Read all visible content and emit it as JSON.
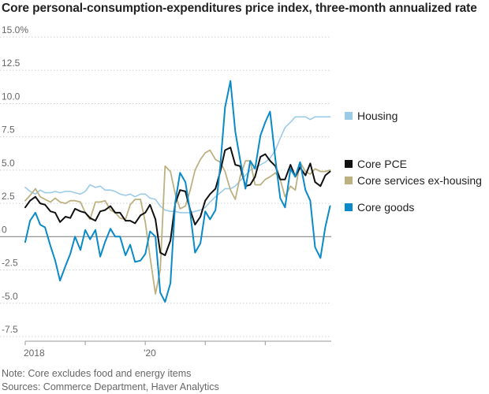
{
  "chart_data": {
    "type": "line",
    "title": "Core personal-consumption-expenditures price index, three-month annualized rate",
    "y_ticks": [
      "15.0%",
      "12.5",
      "10.0",
      "7.5",
      "5.0",
      "2.5",
      "0",
      "-2.5",
      "-5.0",
      "-7.5"
    ],
    "y_tick_values": [
      15,
      12.5,
      10,
      7.5,
      5,
      2.5,
      0,
      -2.5,
      -5,
      -7.5
    ],
    "ylim": [
      -7.5,
      15
    ],
    "x_ticks": [
      "2018",
      "'20"
    ],
    "x_tick_positions": [
      2018.0,
      2020.0
    ],
    "x_minor_ticks": [
      2019.0,
      2021.0,
      2022.0
    ],
    "xlim": [
      2018.0,
      2023.1
    ],
    "grid": true,
    "legend_position": "right",
    "series": [
      {
        "name": "Housing",
        "color": "#9ccbe8",
        "width": 1.6,
        "x": [
          2018.0,
          2018.08,
          2018.17,
          2018.25,
          2018.33,
          2018.42,
          2018.5,
          2018.58,
          2018.67,
          2018.75,
          2018.83,
          2018.92,
          2019.0,
          2019.08,
          2019.17,
          2019.25,
          2019.33,
          2019.42,
          2019.5,
          2019.58,
          2019.67,
          2019.75,
          2019.83,
          2019.92,
          2020.0,
          2020.08,
          2020.17,
          2020.25,
          2020.33,
          2020.42,
          2020.5,
          2020.58,
          2020.67,
          2020.75,
          2020.83,
          2020.92,
          2021.0,
          2021.08,
          2021.17,
          2021.25,
          2021.33,
          2021.42,
          2021.5,
          2021.58,
          2021.67,
          2021.75,
          2021.83,
          2021.92,
          2022.0,
          2022.08,
          2022.17,
          2022.25,
          2022.33,
          2022.42,
          2022.5,
          2022.58,
          2022.67,
          2022.75,
          2022.83,
          2022.92,
          2023.0,
          2023.08
        ],
        "values": [
          3.7,
          3.4,
          3.2,
          3.5,
          3.3,
          3.3,
          3.4,
          3.3,
          3.4,
          3.4,
          3.3,
          3.2,
          3.4,
          3.9,
          3.7,
          3.8,
          3.5,
          3.5,
          3.4,
          3.2,
          3.1,
          3.2,
          3.0,
          3.2,
          3.2,
          2.9,
          2.8,
          2.3,
          2.0,
          1.9,
          1.9,
          1.8,
          1.8,
          1.8,
          1.9,
          2.0,
          2.2,
          2.6,
          3.0,
          3.3,
          3.6,
          3.6,
          3.8,
          4.2,
          4.6,
          5.0,
          5.2,
          5.4,
          5.6,
          5.9,
          6.5,
          7.4,
          8.2,
          8.6,
          9.0,
          9.0,
          9.0,
          8.8,
          9.0,
          9.0,
          9.0,
          9.0
        ]
      },
      {
        "name": "Core services ex-housing",
        "color": "#bdb181",
        "width": 1.8,
        "x": [
          2018.0,
          2018.08,
          2018.17,
          2018.25,
          2018.33,
          2018.42,
          2018.5,
          2018.58,
          2018.67,
          2018.75,
          2018.83,
          2018.92,
          2019.0,
          2019.08,
          2019.17,
          2019.25,
          2019.33,
          2019.42,
          2019.5,
          2019.58,
          2019.67,
          2019.75,
          2019.83,
          2019.92,
          2020.0,
          2020.08,
          2020.17,
          2020.25,
          2020.33,
          2020.42,
          2020.5,
          2020.58,
          2020.67,
          2020.75,
          2020.83,
          2020.92,
          2021.0,
          2021.08,
          2021.17,
          2021.25,
          2021.33,
          2021.42,
          2021.5,
          2021.58,
          2021.67,
          2021.75,
          2021.83,
          2021.92,
          2022.0,
          2022.08,
          2022.17,
          2022.25,
          2022.33,
          2022.42,
          2022.5,
          2022.58,
          2022.67,
          2022.75,
          2022.83,
          2022.92,
          2023.0,
          2023.08
        ],
        "values": [
          2.7,
          3.1,
          3.6,
          3.0,
          2.8,
          2.6,
          2.9,
          2.6,
          2.5,
          2.7,
          2.7,
          2.6,
          1.8,
          1.3,
          2.6,
          2.6,
          2.7,
          2.0,
          1.8,
          1.4,
          1.3,
          2.4,
          2.8,
          2.8,
          1.1,
          -1.5,
          -4.3,
          -2.5,
          5.3,
          4.9,
          3.2,
          2.1,
          2.3,
          3.5,
          5.0,
          5.8,
          6.3,
          6.5,
          5.8,
          5.6,
          4.9,
          3.5,
          2.8,
          4.5,
          5.7,
          5.7,
          3.9,
          3.9,
          4.3,
          4.5,
          4.8,
          4.3,
          3.0,
          3.8,
          3.5,
          5.6,
          4.9,
          4.7,
          5.1,
          4.9,
          4.9,
          5.0
        ]
      },
      {
        "name": "Core PCE",
        "color": "#111111",
        "width": 2.0,
        "x": [
          2018.0,
          2018.08,
          2018.17,
          2018.25,
          2018.33,
          2018.42,
          2018.5,
          2018.58,
          2018.67,
          2018.75,
          2018.83,
          2018.92,
          2019.0,
          2019.08,
          2019.17,
          2019.25,
          2019.33,
          2019.42,
          2019.5,
          2019.58,
          2019.67,
          2019.75,
          2019.83,
          2019.92,
          2020.0,
          2020.08,
          2020.17,
          2020.25,
          2020.33,
          2020.42,
          2020.5,
          2020.58,
          2020.67,
          2020.75,
          2020.83,
          2020.92,
          2021.0,
          2021.08,
          2021.17,
          2021.25,
          2021.33,
          2021.42,
          2021.5,
          2021.58,
          2021.67,
          2021.75,
          2021.83,
          2021.92,
          2022.0,
          2022.08,
          2022.17,
          2022.25,
          2022.33,
          2022.42,
          2022.5,
          2022.58,
          2022.67,
          2022.75,
          2022.83,
          2022.92,
          2023.0,
          2023.08
        ],
        "values": [
          2.2,
          2.7,
          3.0,
          2.5,
          2.4,
          1.9,
          1.8,
          1.1,
          1.5,
          1.4,
          2.1,
          1.9,
          1.8,
          1.4,
          1.2,
          1.9,
          2.0,
          2.3,
          1.8,
          1.8,
          1.2,
          1.2,
          1.0,
          1.6,
          1.8,
          2.4,
          1.3,
          -1.2,
          -1.4,
          -0.3,
          2.5,
          3.5,
          3.4,
          2.0,
          0.9,
          1.5,
          2.7,
          3.2,
          3.6,
          4.9,
          6.5,
          6.7,
          5.4,
          5.3,
          3.8,
          3.9,
          4.5,
          6.0,
          6.2,
          5.7,
          5.3,
          4.3,
          4.3,
          5.4,
          4.5,
          5.2,
          4.6,
          5.5,
          4.1,
          3.8,
          4.6,
          4.9
        ]
      },
      {
        "name": "Core goods",
        "color": "#0b8ac9",
        "width": 2.0,
        "x": [
          2018.0,
          2018.08,
          2018.17,
          2018.25,
          2018.33,
          2018.42,
          2018.5,
          2018.58,
          2018.67,
          2018.75,
          2018.83,
          2018.92,
          2019.0,
          2019.08,
          2019.17,
          2019.25,
          2019.33,
          2019.42,
          2019.5,
          2019.58,
          2019.67,
          2019.75,
          2019.83,
          2019.92,
          2020.0,
          2020.08,
          2020.17,
          2020.25,
          2020.33,
          2020.42,
          2020.5,
          2020.58,
          2020.67,
          2020.75,
          2020.83,
          2020.92,
          2021.0,
          2021.08,
          2021.17,
          2021.25,
          2021.33,
          2021.42,
          2021.5,
          2021.58,
          2021.67,
          2021.75,
          2021.83,
          2021.92,
          2022.0,
          2022.08,
          2022.17,
          2022.25,
          2022.33,
          2022.42,
          2022.5,
          2022.58,
          2022.67,
          2022.75,
          2022.83,
          2022.92,
          2023.0,
          2023.08
        ],
        "values": [
          -0.4,
          1.2,
          1.8,
          0.9,
          0.7,
          -0.7,
          -1.8,
          -3.3,
          -2.2,
          -1.3,
          0.0,
          -1.0,
          0.5,
          -0.2,
          0.5,
          -1.5,
          -0.4,
          0.6,
          0.0,
          0.0,
          -1.4,
          -0.6,
          -1.9,
          -1.8,
          -1.3,
          0.4,
          0.0,
          -4.2,
          -4.9,
          -3.5,
          2.6,
          4.8,
          4.1,
          1.8,
          -1.2,
          -0.5,
          1.9,
          1.3,
          2.0,
          5.3,
          9.7,
          11.7,
          7.9,
          5.8,
          3.6,
          5.7,
          5.1,
          7.6,
          8.6,
          9.4,
          5.8,
          2.9,
          2.2,
          5.1,
          4.5,
          5.6,
          3.5,
          2.7,
          -0.8,
          -1.6,
          0.7,
          2.3
        ]
      }
    ]
  },
  "legend": [
    {
      "label": "Housing",
      "color": "#9ccbe8"
    },
    {
      "label": "Core PCE",
      "color": "#111111"
    },
    {
      "label": "Core services ex-housing",
      "color": "#bdb181"
    },
    {
      "label": "Core goods",
      "color": "#0b8ac9"
    }
  ],
  "footer": {
    "note": "Note: Core excludes food and energy items",
    "sources": "Sources: Commerce Department, Haver Analytics"
  }
}
